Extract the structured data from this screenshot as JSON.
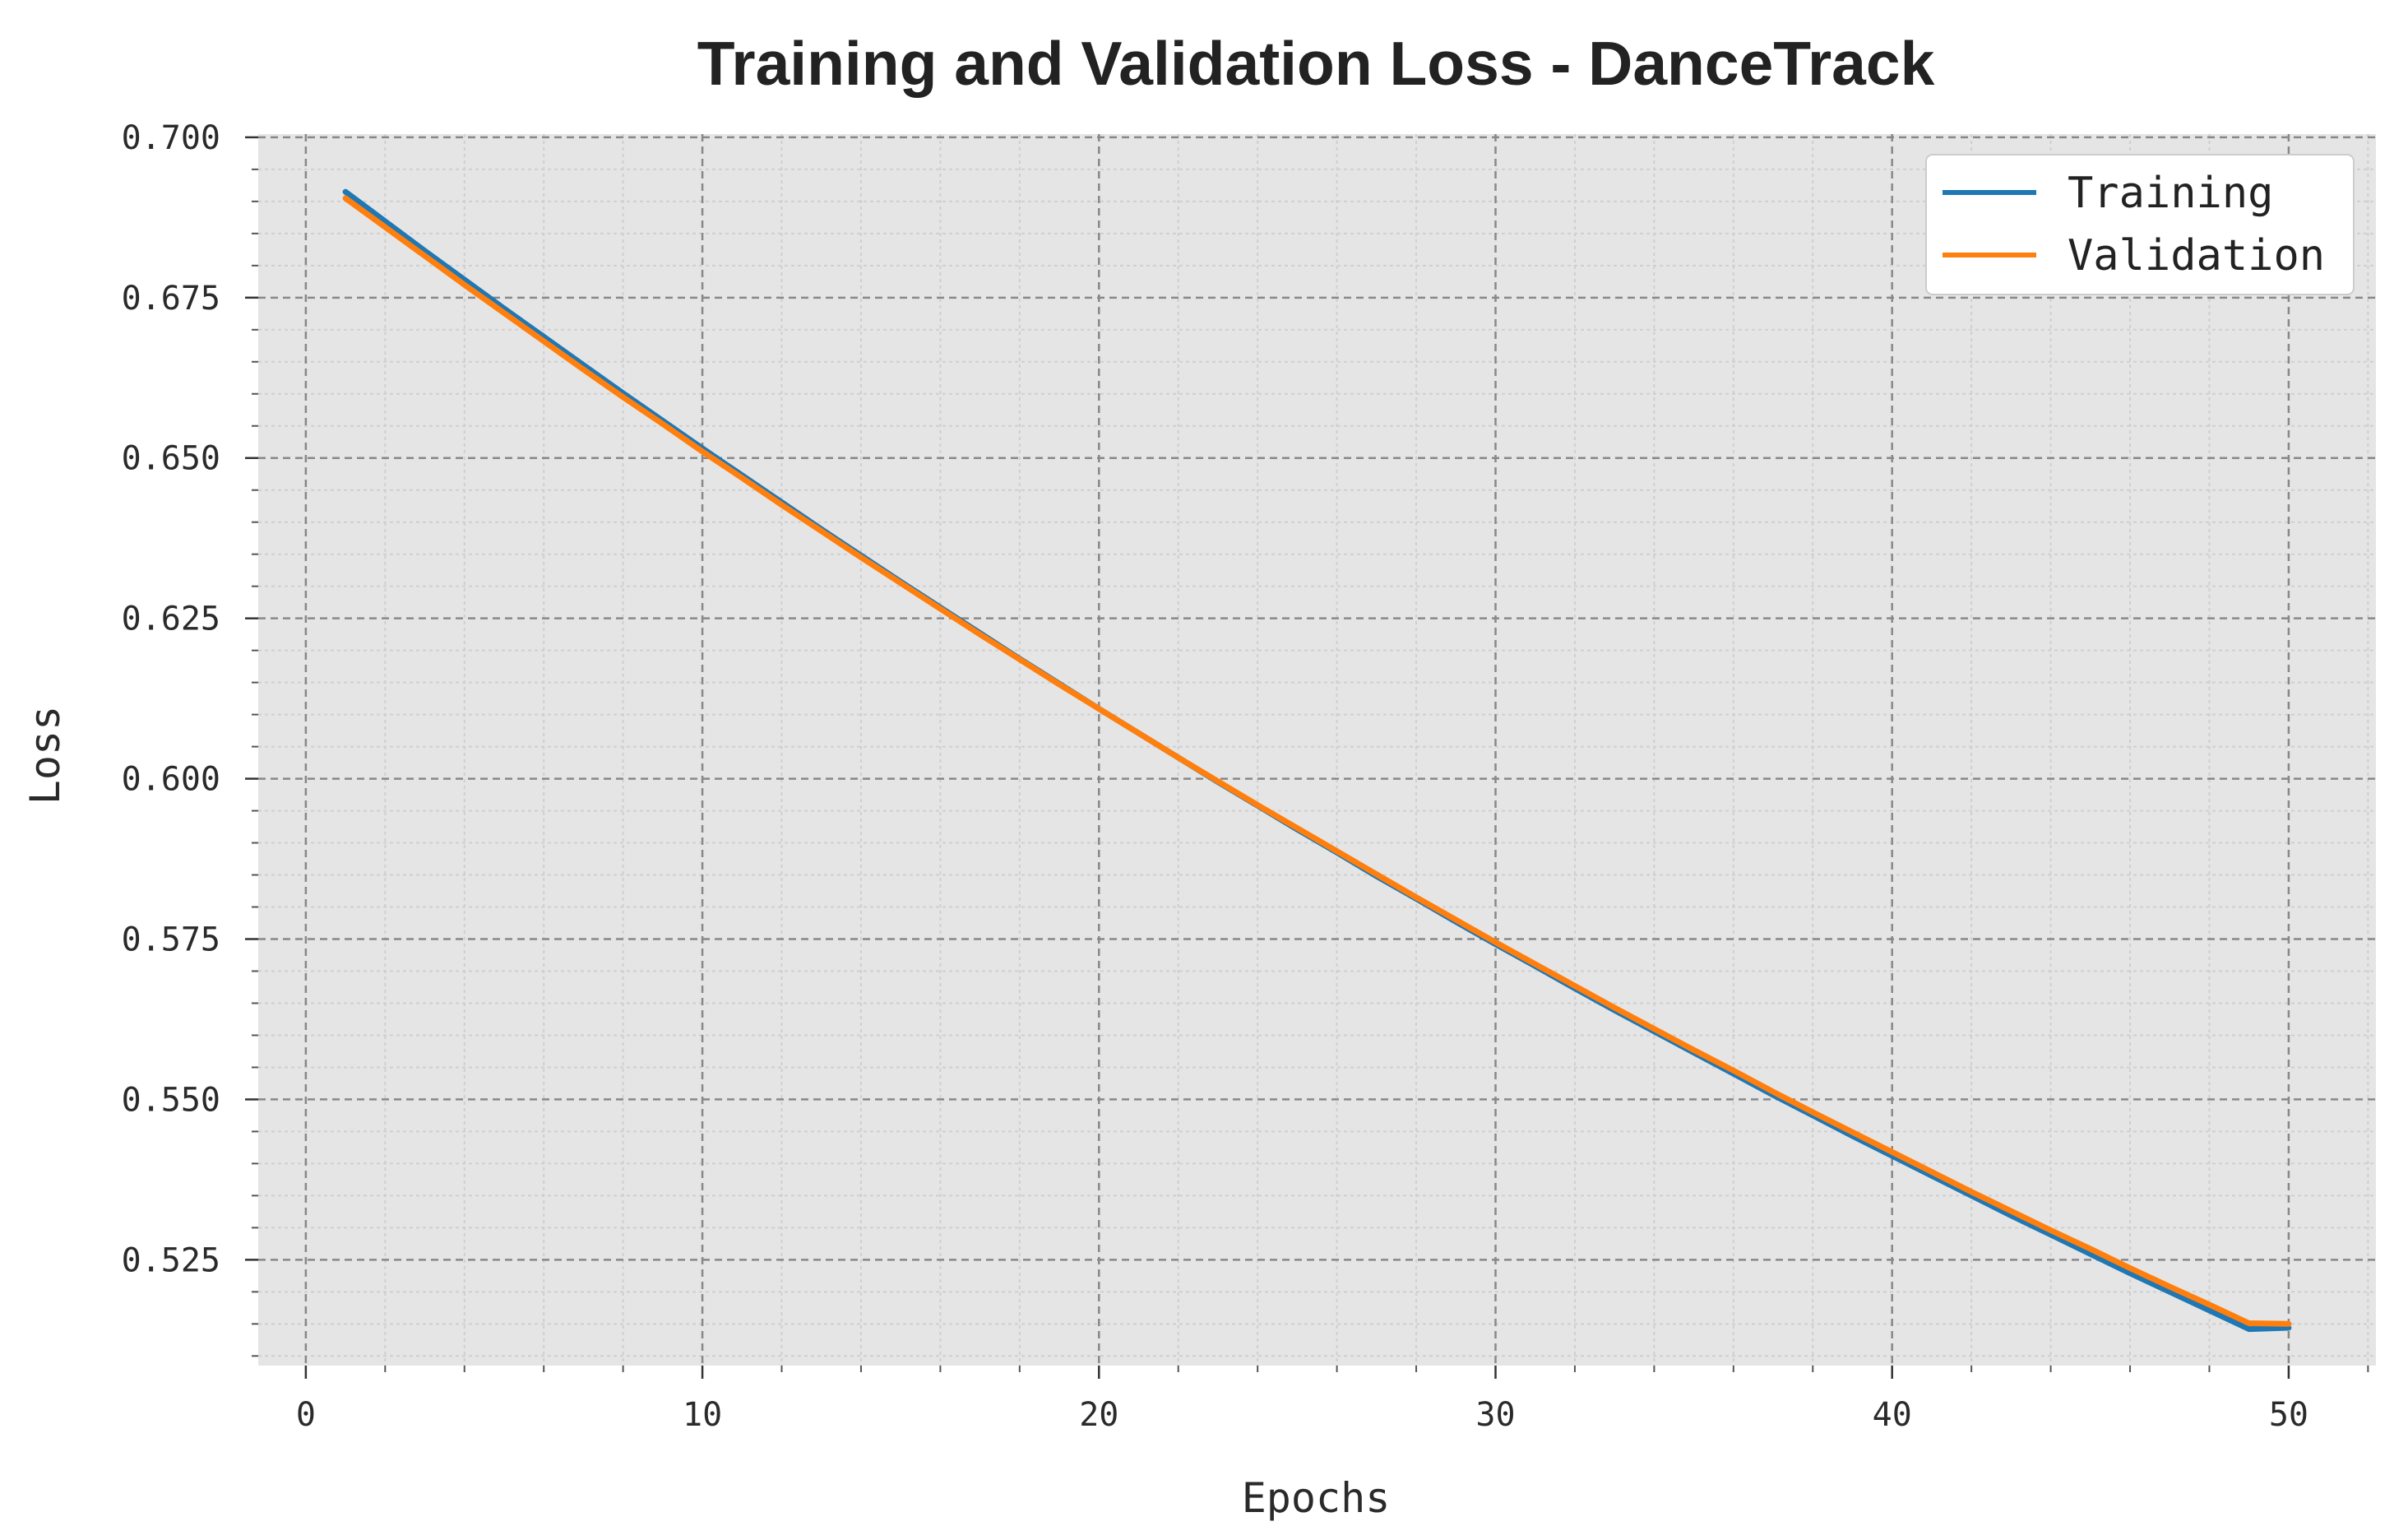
{
  "chart_data": {
    "type": "line",
    "title": "Training and Validation Loss - DanceTrack",
    "xlabel": "Epochs",
    "ylabel": "Loss",
    "xlim": [
      -1.2,
      52.2
    ],
    "ylim": [
      0.5085,
      0.7005
    ],
    "xticks": [
      0,
      10,
      20,
      30,
      40,
      50
    ],
    "xtick_labels": [
      "0",
      "10",
      "20",
      "30",
      "40",
      "50"
    ],
    "yticks": [
      0.525,
      0.55,
      0.575,
      0.6,
      0.625,
      0.65,
      0.675,
      0.7
    ],
    "ytick_labels": [
      "0.525",
      "0.550",
      "0.575",
      "0.600",
      "0.625",
      "0.650",
      "0.675",
      "0.700"
    ],
    "grid": true,
    "minor_grid": true,
    "legend_position": "top-right",
    "x": [
      1,
      2,
      3,
      4,
      5,
      6,
      7,
      8,
      9,
      10,
      11,
      12,
      13,
      14,
      15,
      16,
      17,
      18,
      19,
      20,
      21,
      22,
      23,
      24,
      25,
      26,
      27,
      28,
      29,
      30,
      31,
      32,
      33,
      34,
      35,
      36,
      37,
      38,
      39,
      40,
      41,
      42,
      43,
      44,
      45,
      46,
      47,
      48,
      49,
      50
    ],
    "series": [
      {
        "name": "Training",
        "color": "#1f77b4",
        "values": [
          0.6915,
          0.6869,
          0.6823,
          0.6778,
          0.6733,
          0.6689,
          0.6645,
          0.6601,
          0.6558,
          0.6515,
          0.6473,
          0.6431,
          0.6389,
          0.6348,
          0.6307,
          0.6267,
          0.6227,
          0.6187,
          0.6148,
          0.6109,
          0.6071,
          0.6033,
          0.5995,
          0.5958,
          0.5921,
          0.5885,
          0.5848,
          0.5813,
          0.5777,
          0.5742,
          0.5708,
          0.5673,
          0.5639,
          0.5606,
          0.5573,
          0.554,
          0.5507,
          0.5475,
          0.5443,
          0.5412,
          0.5381,
          0.535,
          0.5319,
          0.5289,
          0.5259,
          0.5229,
          0.52,
          0.5171,
          0.5142,
          0.5144
        ]
      },
      {
        "name": "Validation",
        "color": "#ff7f0e",
        "values": [
          0.6905,
          0.686,
          0.6815,
          0.677,
          0.6726,
          0.6682,
          0.6638,
          0.6595,
          0.6553,
          0.651,
          0.6469,
          0.6427,
          0.6386,
          0.6345,
          0.6305,
          0.6265,
          0.6225,
          0.6186,
          0.6147,
          0.6109,
          0.6071,
          0.6033,
          0.5996,
          0.5959,
          0.5923,
          0.5887,
          0.5851,
          0.5815,
          0.578,
          0.5745,
          0.5711,
          0.5677,
          0.5643,
          0.561,
          0.5577,
          0.5545,
          0.5512,
          0.548,
          0.5449,
          0.5418,
          0.5387,
          0.5356,
          0.5326,
          0.5296,
          0.5267,
          0.5237,
          0.5208,
          0.518,
          0.5151,
          0.515
        ]
      }
    ]
  }
}
